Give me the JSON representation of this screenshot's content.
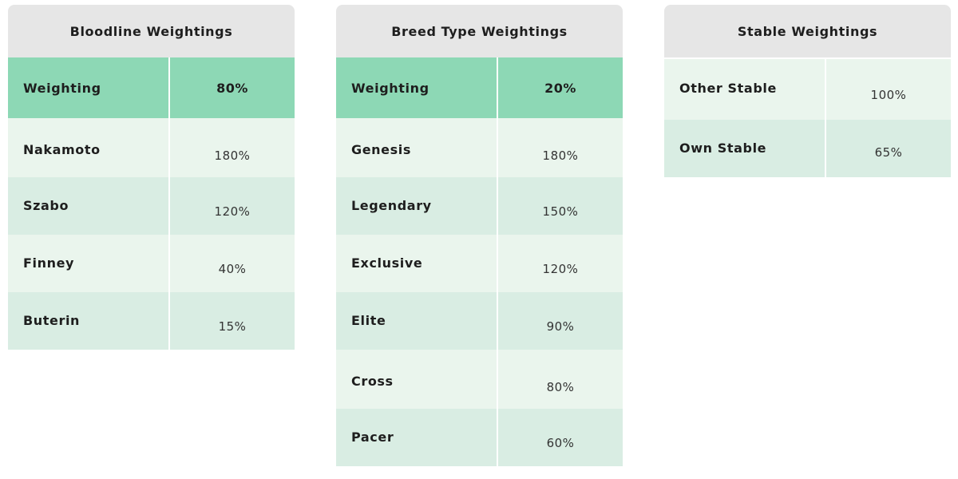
{
  "bloodline": {
    "title": "Bloodline Weightings",
    "weighting": {
      "label": "Weighting",
      "value": "80%"
    },
    "rows": [
      {
        "label": "Nakamoto",
        "value": "180%"
      },
      {
        "label": "Szabo",
        "value": "120%"
      },
      {
        "label": "Finney",
        "value": "40%"
      },
      {
        "label": "Buterin",
        "value": "15%"
      }
    ]
  },
  "breed": {
    "title": "Breed Type Weightings",
    "weighting": {
      "label": "Weighting",
      "value": "20%"
    },
    "rows": [
      {
        "label": "Genesis",
        "value": "180%"
      },
      {
        "label": "Legendary",
        "value": "150%"
      },
      {
        "label": "Exclusive",
        "value": "120%"
      },
      {
        "label": "Elite",
        "value": "90%"
      },
      {
        "label": "Cross",
        "value": "80%"
      },
      {
        "label": "Pacer",
        "value": "60%"
      }
    ]
  },
  "stable": {
    "title": "Stable Weightings",
    "rows": [
      {
        "label": "Other Stable",
        "value": "100%"
      },
      {
        "label": "Own Stable",
        "value": "65%"
      }
    ]
  },
  "colors": {
    "header_bg": "#e6e6e6",
    "weighting_row": "#8dd8b5",
    "row_light": "#eaf5ed",
    "row_dark": "#d9ede3"
  }
}
